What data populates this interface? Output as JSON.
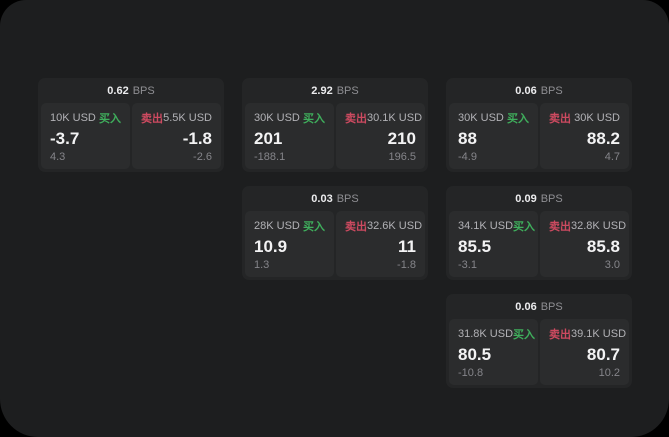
{
  "labels": {
    "bps_unit": "BPS",
    "buy": "买入",
    "sell": "卖出"
  },
  "colors": {
    "buy_green": "#3fae5c",
    "sell_red": "#cd4a60"
  },
  "cards": [
    {
      "bps": "0.62",
      "buy": {
        "amount": "10K USD",
        "value": "-3.7",
        "delta": "4.3"
      },
      "sell": {
        "amount": "5.5K USD",
        "value": "-1.8",
        "delta": "-2.6"
      }
    },
    {
      "bps": "2.92",
      "buy": {
        "amount": "30K USD",
        "value": "201",
        "delta": "-188.1"
      },
      "sell": {
        "amount": "30.1K USD",
        "value": "210",
        "delta": "196.5"
      }
    },
    {
      "bps": "0.06",
      "buy": {
        "amount": "30K USD",
        "value": "88",
        "delta": "-4.9"
      },
      "sell": {
        "amount": "30K USD",
        "value": "88.2",
        "delta": "4.7"
      }
    },
    {
      "bps": "0.03",
      "buy": {
        "amount": "28K USD",
        "value": "10.9",
        "delta": "1.3"
      },
      "sell": {
        "amount": "32.6K USD",
        "value": "11",
        "delta": "-1.8"
      }
    },
    {
      "bps": "0.09",
      "buy": {
        "amount": "34.1K USD",
        "value": "85.5",
        "delta": "-3.1"
      },
      "sell": {
        "amount": "32.8K USD",
        "value": "85.8",
        "delta": "3.0"
      }
    },
    {
      "bps": "0.06",
      "buy": {
        "amount": "31.8K USD",
        "value": "80.5",
        "delta": "-10.8"
      },
      "sell": {
        "amount": "39.1K USD",
        "value": "80.7",
        "delta": "10.2"
      }
    }
  ]
}
